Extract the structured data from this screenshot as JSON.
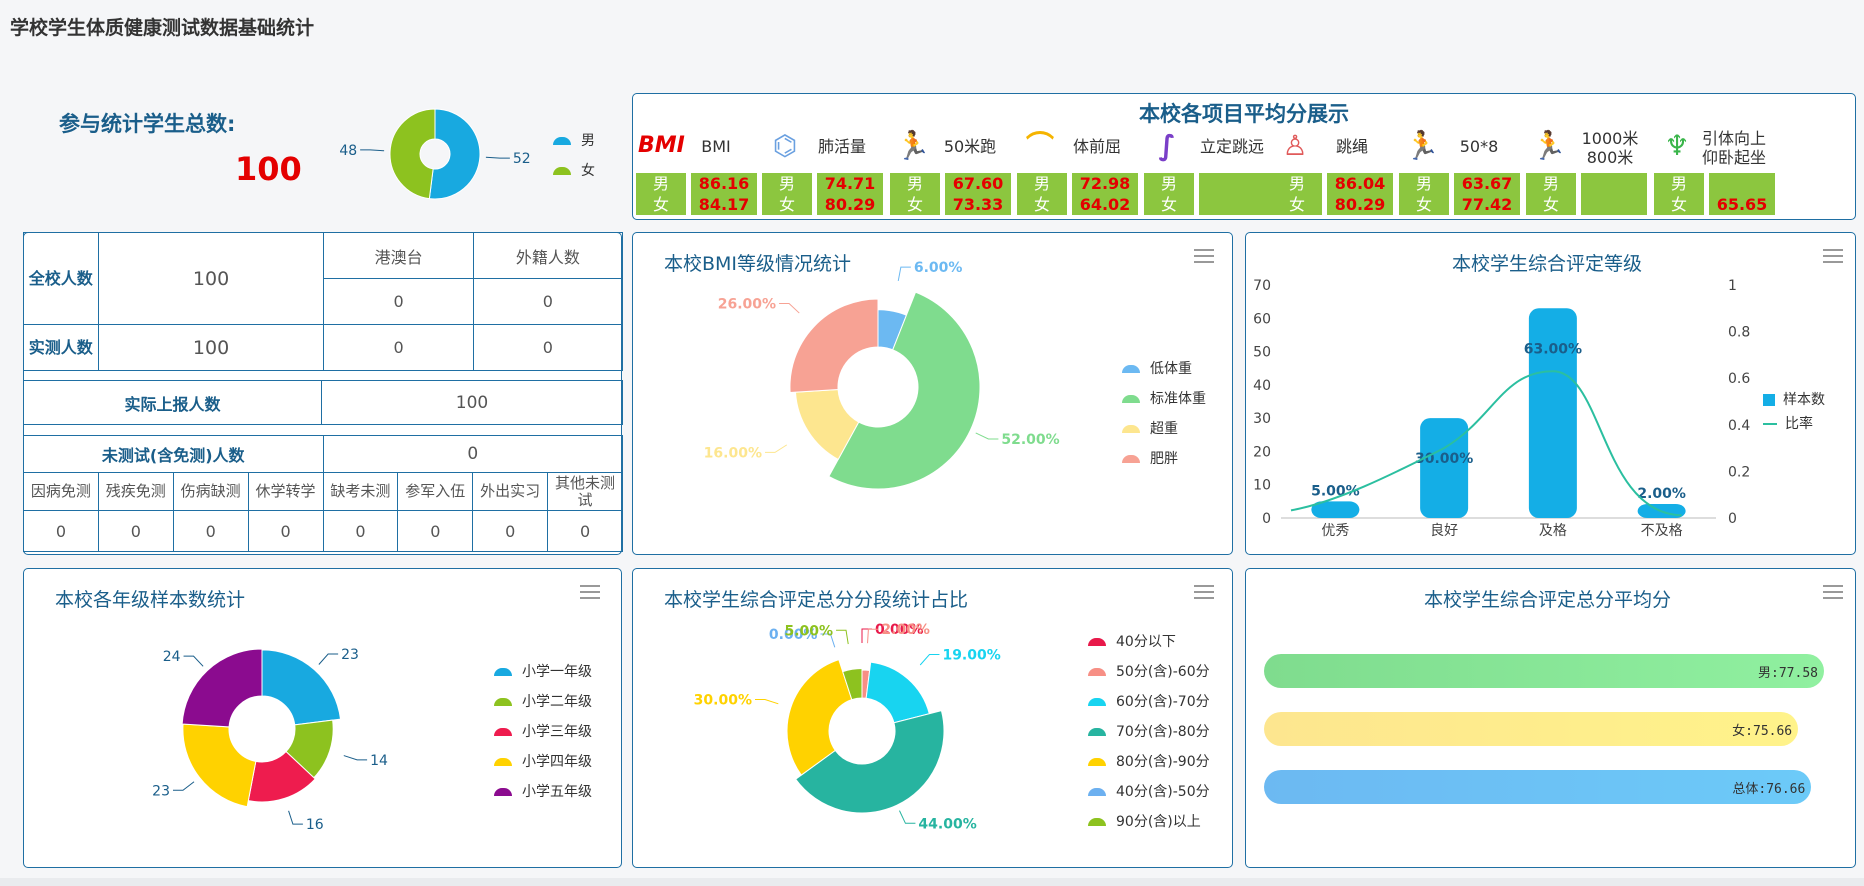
{
  "page_title": "学校学生体质健康测试数据基础统计",
  "summary": {
    "label": "参与统计学生总数:",
    "total": "100",
    "gender_pie": {
      "male": 52,
      "female": 48,
      "male_label": "52",
      "female_label": "48"
    },
    "legend": [
      {
        "label": "男",
        "color": "#18a9e0"
      },
      {
        "label": "女",
        "color": "#8dc21f"
      }
    ]
  },
  "avg_panel": {
    "title": "本校各项目平均分展示",
    "items": [
      {
        "icon": "bmi-logo-icon",
        "logo_text": "BMI",
        "label": "BMI",
        "male": "86.16",
        "female": "84.17"
      },
      {
        "icon": "lungs-icon",
        "label": "肺活量",
        "male": "74.71",
        "female": "80.29"
      },
      {
        "icon": "sprinter-icon",
        "label": "50米跑",
        "male": "67.60",
        "female": "73.33"
      },
      {
        "icon": "sit-reach-icon",
        "label": "体前屈",
        "male": "72.98",
        "female": "64.02"
      },
      {
        "icon": "long-jump-icon",
        "label": "立定跳远",
        "male": "",
        "female": ""
      },
      {
        "icon": "rope-skip-icon",
        "label": "跳绳",
        "male": "86.04",
        "female": "80.29"
      },
      {
        "icon": "shuttle-run-icon",
        "label": "50*8",
        "male": "63.67",
        "female": "77.42"
      },
      {
        "icon": "runner-icon",
        "label": "1000米\n800米",
        "male": "",
        "female": ""
      },
      {
        "icon": "pullup-icon",
        "label": "引体向上\n仰卧起坐",
        "male": "",
        "female": "65.65"
      }
    ],
    "gender_male": "男",
    "gender_female": "女"
  },
  "count_table": {
    "school_total_label": "全校人数",
    "school_total": "100",
    "hmt_label": "港澳台",
    "foreign_label": "外籍人数",
    "hmt_total": "0",
    "foreign_total": "0",
    "measured_label": "实测人数",
    "measured": "100",
    "hmt_measured": "0",
    "foreign_measured": "0",
    "reported_label": "实际上报人数",
    "reported": "100",
    "untested_label": "未测试(含免测)人数",
    "untested": "0",
    "reason_headers": [
      "因病免测",
      "残疾免测",
      "伤病缺测",
      "休学转学",
      "缺考未测",
      "参军入伍",
      "外出实习",
      "其他未测试"
    ],
    "reason_values": [
      "0",
      "0",
      "0",
      "0",
      "0",
      "0",
      "0",
      "0"
    ]
  },
  "bmi_panel": {
    "title": "本校BMI等级情况统计",
    "chart_data": {
      "type": "pie",
      "categories": [
        "低体重",
        "标准体重",
        "超重",
        "肥胖"
      ],
      "values": [
        6,
        52,
        16,
        26
      ],
      "labels": [
        "6.00%",
        "52.00%",
        "16.00%",
        "26.00%"
      ],
      "colors": [
        "#6cb9f2",
        "#7fdc8e",
        "#fde68f",
        "#f7a294"
      ]
    }
  },
  "rating_panel": {
    "title": "本校学生综合评定等级",
    "chart_data": {
      "type": "bar",
      "categories": [
        "优秀",
        "良好",
        "及格",
        "不及格"
      ],
      "series": [
        {
          "name": "样本数",
          "values": [
            5,
            30,
            63,
            2
          ]
        },
        {
          "name": "比率",
          "values": [
            0.05,
            0.3,
            0.63,
            0.02
          ]
        }
      ],
      "data_labels": [
        "5.00%",
        "30.00%",
        "63.00%",
        "2.00%"
      ],
      "ylim": [
        0,
        70
      ],
      "y_ticks": [
        "0",
        "10",
        "20",
        "30",
        "40",
        "50",
        "60",
        "70"
      ],
      "y2lim": [
        0,
        1
      ],
      "y2_ticks": [
        "0",
        "0.2",
        "0.4",
        "0.6",
        "0.8",
        "1"
      ],
      "colors": [
        "#14aee6",
        "#2bbfa0"
      ]
    }
  },
  "grade_panel": {
    "title": "本校各年级样本数统计",
    "chart_data": {
      "type": "pie",
      "categories": [
        "小学一年级",
        "小学二年级",
        "小学三年级",
        "小学四年级",
        "小学五年级"
      ],
      "values": [
        23,
        14,
        16,
        23,
        24
      ],
      "labels": [
        "23",
        "14",
        "16",
        "23",
        "24"
      ],
      "colors": [
        "#18a9e0",
        "#8dc21f",
        "#ee1c4e",
        "#ffd200",
        "#8b0b8f"
      ]
    }
  },
  "score_panel": {
    "title": "本校学生综合评定总分分段统计占比",
    "chart_data": {
      "type": "pie",
      "categories": [
        "40分以下",
        "50分(含)-60分",
        "60分(含)-70分",
        "70分(含)-80分",
        "80分(含)-90分",
        "40分(含)-50分",
        "90分(含)以上"
      ],
      "values": [
        0,
        2,
        19,
        44,
        30,
        0,
        5
      ],
      "labels": [
        "0.00%",
        "2.00%",
        "19.00%",
        "44.00%",
        "30.00%",
        "0.00%",
        "5.00%"
      ],
      "colors": [
        "#e8194a",
        "#f78f85",
        "#18d4f0",
        "#27b4a0",
        "#ffd200",
        "#6cb0f0",
        "#8dc21f"
      ]
    }
  },
  "avg_total_panel": {
    "title": "本校学生综合评定总分平均分",
    "chart_data": {
      "type": "bar",
      "categories": [
        "男",
        "女",
        "总体"
      ],
      "values": [
        77.58,
        75.66,
        76.66
      ],
      "labels": [
        "男:77.58",
        "女:75.66",
        "总体:76.66"
      ],
      "colors": [
        "#7fdc8e",
        "#fde68f",
        "#6cb9f2"
      ]
    }
  }
}
